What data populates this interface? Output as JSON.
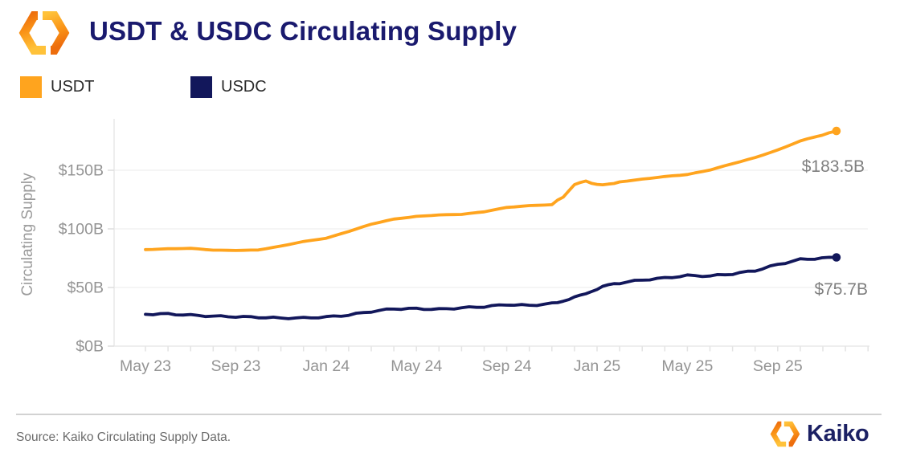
{
  "header": {
    "title": "USDT & USDC Circulating Supply"
  },
  "legend": [
    {
      "label": "USDT",
      "color": "#FFA41E"
    },
    {
      "label": "USDC",
      "color": "#12175B"
    }
  ],
  "chart_data": {
    "type": "line",
    "title": "USDT & USDC Circulating Supply",
    "xlabel": "",
    "ylabel": "Circulating Supply",
    "x_unit": "months since May 2023",
    "ylim": [
      0,
      194
    ],
    "grid": "horizontal-only",
    "legend_position": "top-left",
    "x": [
      0,
      1,
      2,
      3,
      4,
      5,
      6,
      7,
      8,
      9,
      10,
      11,
      12,
      13,
      14,
      15,
      16,
      17,
      18,
      18.5,
      19,
      19.5,
      20,
      20.5,
      21,
      22,
      23,
      24,
      25,
      26,
      27,
      28,
      29,
      30.6
    ],
    "series": [
      {
        "name": "USDT",
        "color": "#FFA41E",
        "unit": "billion USD",
        "values": [
          82.3,
          83.0,
          83.4,
          81.9,
          81.6,
          82.0,
          85.3,
          89.2,
          92.0,
          97.8,
          104.0,
          108.3,
          110.6,
          111.9,
          112.4,
          114.6,
          118.3,
          119.8,
          120.6,
          127.5,
          137.8,
          140.6,
          138.0,
          137.6,
          140.1,
          142.4,
          144.6,
          146.4,
          150.2,
          155.6,
          160.8,
          167.2,
          175.0,
          183.5
        ],
        "end_label": "$183.5B"
      },
      {
        "name": "USDC",
        "color": "#12175B",
        "unit": "billion USD",
        "values": [
          27.1,
          27.5,
          26.4,
          25.5,
          25.1,
          24.6,
          23.9,
          24.0,
          24.8,
          26.5,
          29.5,
          31.8,
          31.9,
          31.4,
          32.6,
          33.6,
          35.4,
          34.7,
          36.3,
          38.4,
          41.6,
          44.8,
          48.6,
          52.4,
          53.8,
          56.4,
          58.1,
          60.2,
          59.8,
          61.6,
          64.4,
          69.6,
          73.9,
          75.7
        ],
        "end_label": "$75.7B"
      }
    ],
    "y_ticks": [
      {
        "label": "$150B",
        "value": 150
      },
      {
        "label": "$100B",
        "value": 100
      },
      {
        "label": "$50B",
        "value": 50
      },
      {
        "label": "$0B",
        "value": 0
      }
    ],
    "x_ticks": [
      {
        "label": "May 23",
        "month": 0
      },
      {
        "label": "Sep 23",
        "month": 4
      },
      {
        "label": "Jan 24",
        "month": 8
      },
      {
        "label": "May 24",
        "month": 12
      },
      {
        "label": "Sep 24",
        "month": 16
      },
      {
        "label": "Jan 25",
        "month": 20
      },
      {
        "label": "May 25",
        "month": 24
      },
      {
        "label": "Sep 25",
        "month": 28
      }
    ]
  },
  "theme": {
    "title_color": "#1A1A6E",
    "axis_text_color": "#999999",
    "grid_color": "#F2F2F2",
    "source_text_color": "#6B6B6B",
    "brand_navy": "#1B2063",
    "brand_orange": "#FFA41E"
  },
  "footer": {
    "source": "Source: Kaiko Circulating Supply Data.",
    "brand": "Kaiko"
  }
}
